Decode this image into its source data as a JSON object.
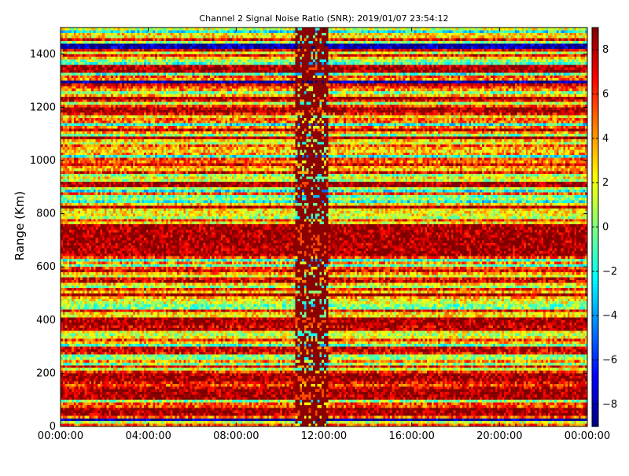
{
  "figure": {
    "title": "Channel 2 Signal Noise Ratio (SNR): 2019/01/07 23:54:12"
  },
  "chart_data": {
    "type": "heatmap",
    "title": "Channel 2 Signal Noise Ratio (SNR): 2019/01/07 23:54:12",
    "xlabel": "",
    "ylabel": "Range (Km)",
    "x_ticks": [
      "00:00:00",
      "04:00:00",
      "08:00:00",
      "12:00:00",
      "16:00:00",
      "20:00:00",
      "00:00:00"
    ],
    "y_ticks": [
      "0",
      "200",
      "400",
      "600",
      "800",
      "1000",
      "1200",
      "1400"
    ],
    "xlim_hours": [
      0,
      24
    ],
    "ylim": [
      0,
      1500
    ],
    "colorbar": {
      "ticks": [
        "−8",
        "−6",
        "−4",
        "−2",
        "0",
        "2",
        "4",
        "6",
        "8"
      ],
      "range": [
        -9,
        9
      ],
      "colormap": "jet"
    },
    "grid": false,
    "features": {
      "data_gap_start_hour": 10.7,
      "data_gap_end_hour": 12.2,
      "persistent_high_snr_bands_km": [
        [
          40,
          60
        ],
        [
          100,
          140
        ],
        [
          170,
          200
        ],
        [
          380,
          410
        ],
        [
          640,
          760
        ],
        [
          900,
          920
        ],
        [
          1180,
          1200
        ],
        [
          1330,
          1350
        ]
      ],
      "persistent_low_snr_bands_km": [
        [
          20,
          30
        ],
        [
          1290,
          1300
        ],
        [
          1420,
          1440
        ]
      ]
    }
  }
}
